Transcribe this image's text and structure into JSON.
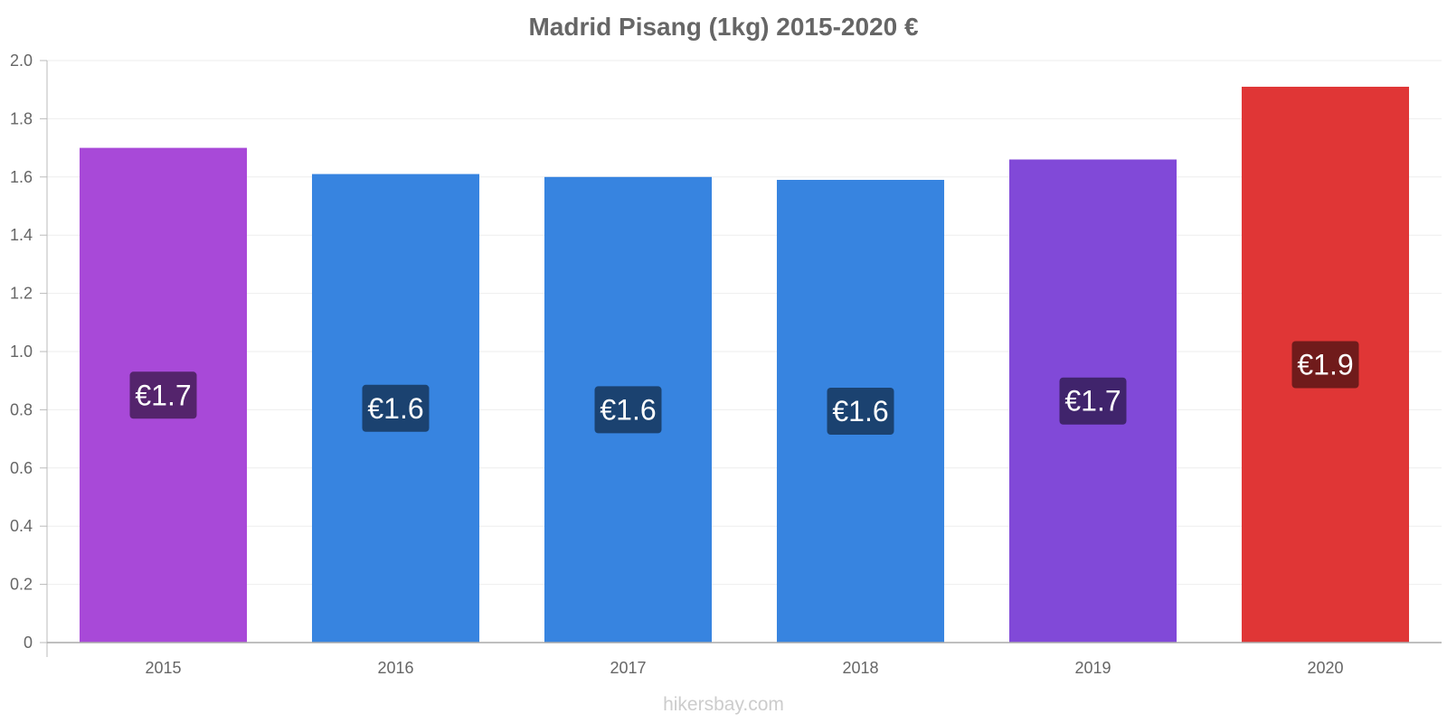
{
  "chart_data": {
    "type": "bar",
    "title": "Madrid Pisang (1kg) 2015-2020 €",
    "xlabel": "",
    "ylabel": "",
    "categories": [
      "2015",
      "2016",
      "2017",
      "2018",
      "2019",
      "2020"
    ],
    "values": [
      1.7,
      1.61,
      1.6,
      1.59,
      1.66,
      1.91
    ],
    "data_labels": [
      "€1.7",
      "€1.6",
      "€1.6",
      "€1.6",
      "€1.7",
      "€1.9"
    ],
    "ylim": [
      0,
      2.0
    ],
    "y_ticks": [
      "0",
      "0.2",
      "0.4",
      "0.6",
      "0.8",
      "1.0",
      "1.2",
      "1.4",
      "1.6",
      "1.8",
      "2.0"
    ],
    "grid": true,
    "legend": "none",
    "bar_colors": [
      "#a849d8",
      "#3784e0",
      "#3784e0",
      "#3784e0",
      "#8149d8",
      "#e03636"
    ],
    "label_bg_colors": [
      "#54246c",
      "#1b4270",
      "#1b4270",
      "#1b4270",
      "#40246c",
      "#701b1b"
    ]
  },
  "watermark": "hikersbay.com"
}
